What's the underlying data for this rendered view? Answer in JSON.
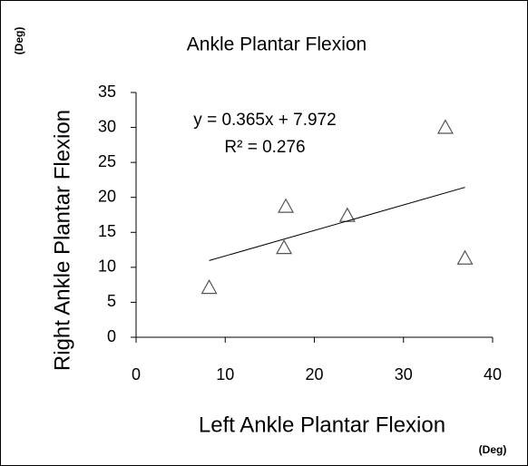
{
  "chart_data": {
    "type": "scatter",
    "title": "Ankle Plantar Flexion",
    "x_label": "Left Ankle Plantar Flexion",
    "y_label": "Right Ankle Plantar Flexion",
    "x_unit": "(Deg)",
    "y_unit": "(Deg)",
    "series": [
      {
        "name": "Ankle Plantar Flexion",
        "color": "#555555",
        "x": [
          8.2,
          16.6,
          16.8,
          23.7,
          34.7,
          36.9
        ],
        "values": [
          7.1,
          12.8,
          18.7,
          17.4,
          30.0,
          11.3
        ]
      }
    ],
    "trendline": {
      "slope": 0.365,
      "intercept": 7.972,
      "label": "y = 0.365x + 7.972",
      "r2_label": "R² = 0.276"
    },
    "xlim": [
      0,
      40
    ],
    "xticks": [
      0,
      10,
      20,
      30,
      40
    ],
    "ylim": [
      0,
      35
    ],
    "yticks": [
      0,
      5,
      10,
      15,
      20,
      25,
      30,
      35
    ],
    "grid": false
  }
}
